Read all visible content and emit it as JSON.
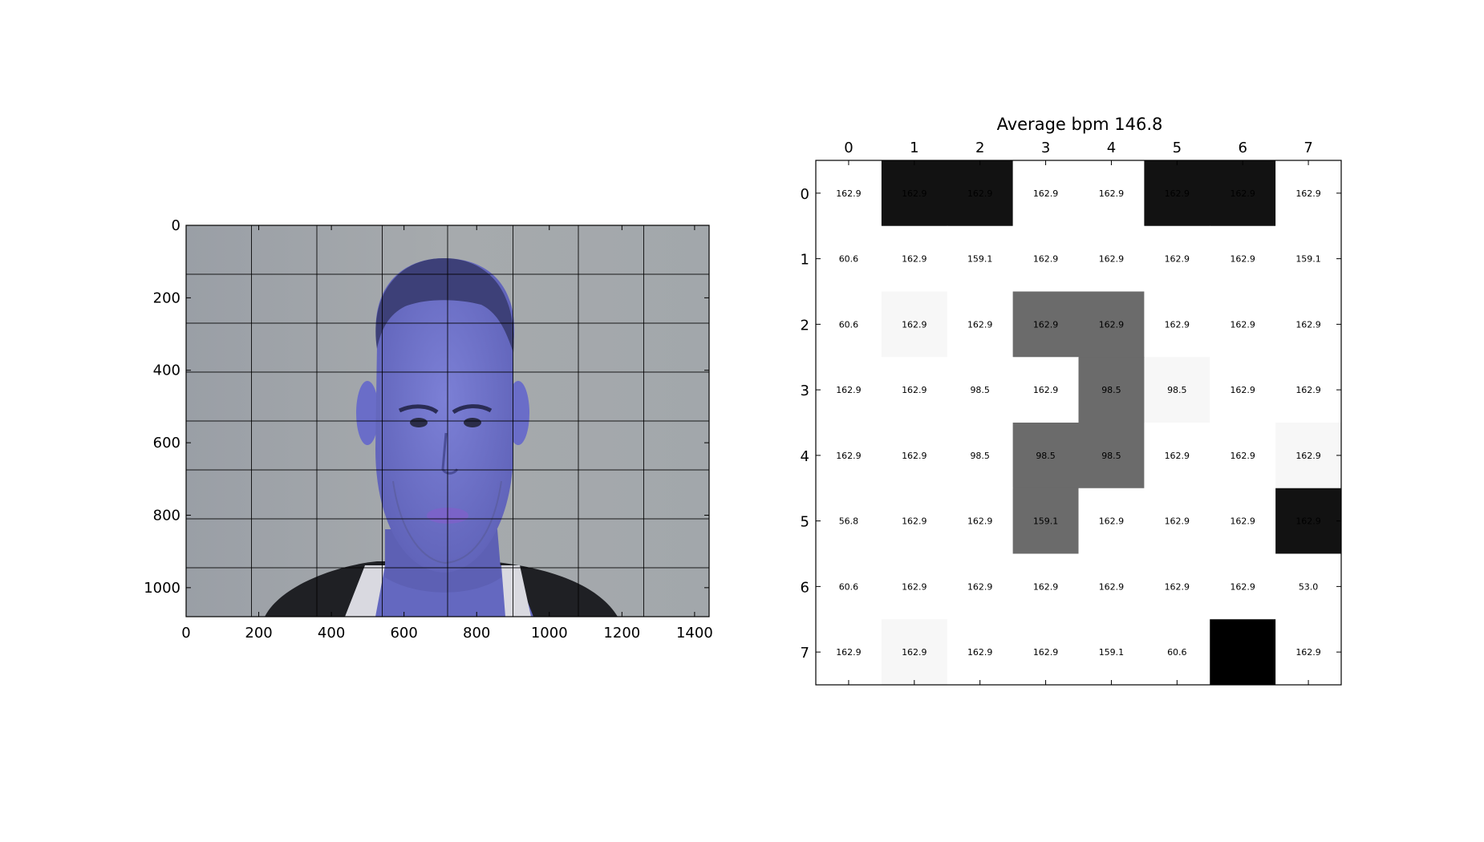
{
  "chart_data": [
    {
      "type": "image",
      "title": "",
      "xlim": [
        0,
        1440
      ],
      "ylim": [
        1080,
        0
      ],
      "x_ticks": [
        0,
        200,
        400,
        600,
        800,
        1000,
        1200,
        1400
      ],
      "y_ticks": [
        0,
        200,
        400,
        600,
        800,
        1000
      ],
      "grid_lines_x": [
        180,
        360,
        540,
        720,
        900,
        1080,
        1260
      ],
      "grid_lines_y": [
        135,
        270,
        405,
        540,
        675,
        810,
        945
      ],
      "image_tint": "#7a7fd0",
      "background_color": "#a3a8ad"
    },
    {
      "type": "heatmap",
      "title": "Average bpm 146.8",
      "x_ticks": [
        "0",
        "1",
        "2",
        "3",
        "4",
        "5",
        "6",
        "7"
      ],
      "y_ticks": [
        "0",
        "1",
        "2",
        "3",
        "4",
        "5",
        "6",
        "7"
      ],
      "colormap": "gray_r",
      "values": [
        [
          "162.9",
          "162.9",
          "162.9",
          "162.9",
          "162.9",
          "162.9",
          "162.9",
          "162.9"
        ],
        [
          "60.6",
          "162.9",
          "159.1",
          "162.9",
          "162.9",
          "162.9",
          "162.9",
          "159.1"
        ],
        [
          "60.6",
          "162.9",
          "162.9",
          "162.9",
          "162.9",
          "162.9",
          "162.9",
          "162.9"
        ],
        [
          "162.9",
          "162.9",
          "98.5",
          "162.9",
          "98.5",
          "98.5",
          "162.9",
          "162.9"
        ],
        [
          "162.9",
          "162.9",
          "98.5",
          "98.5",
          "98.5",
          "162.9",
          "162.9",
          "162.9"
        ],
        [
          "56.8",
          "162.9",
          "162.9",
          "159.1",
          "162.9",
          "162.9",
          "162.9",
          "162.9"
        ],
        [
          "60.6",
          "162.9",
          "162.9",
          "162.9",
          "162.9",
          "162.9",
          "162.9",
          "53.0"
        ],
        [
          "162.9",
          "162.9",
          "162.9",
          "162.9",
          "159.1",
          "60.6",
          "",
          "162.9"
        ]
      ],
      "cell_shade": [
        [
          0,
          0.93,
          0.93,
          0,
          0,
          0.93,
          0.93,
          0
        ],
        [
          0,
          0,
          0,
          0,
          0,
          0,
          0,
          0
        ],
        [
          0,
          0.03,
          0,
          0.58,
          0.58,
          0,
          0,
          0
        ],
        [
          0,
          0,
          0,
          0,
          0.58,
          0.03,
          0,
          0
        ],
        [
          0,
          0,
          0,
          0.58,
          0.58,
          0,
          0,
          0.03
        ],
        [
          0,
          0,
          0,
          0.58,
          0,
          0,
          0,
          0.93
        ],
        [
          0,
          0,
          0,
          0,
          0,
          0,
          0,
          0
        ],
        [
          0,
          0.03,
          0,
          0,
          0,
          0,
          1.0,
          0
        ]
      ]
    }
  ]
}
